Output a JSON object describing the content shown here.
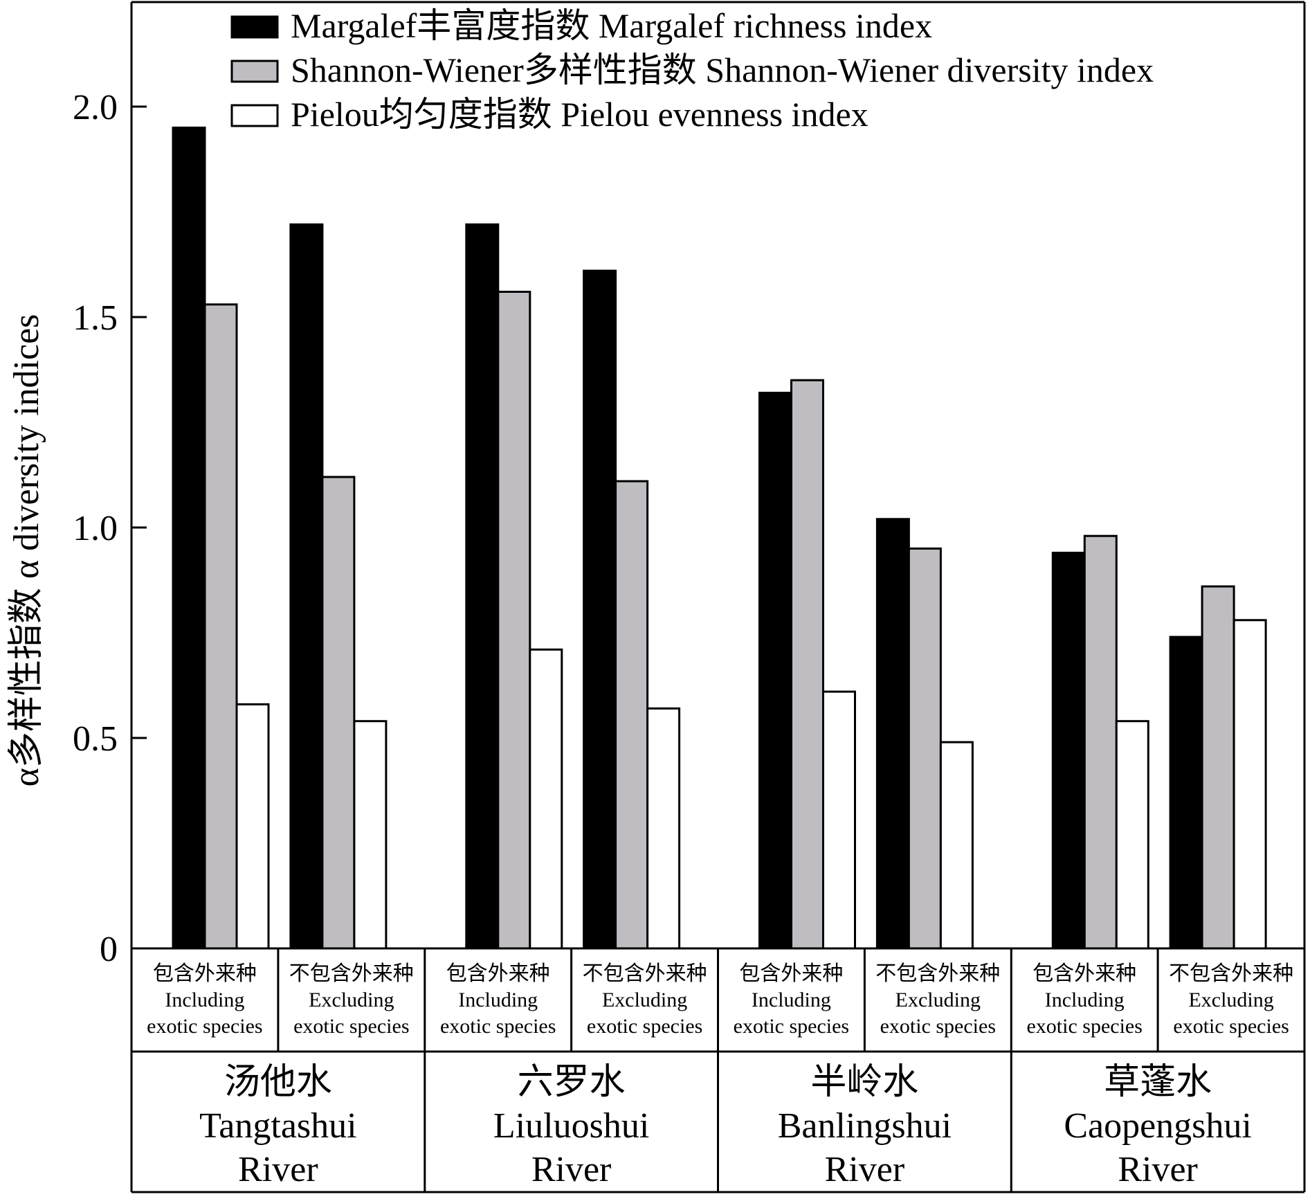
{
  "chart_data": {
    "type": "bar",
    "ylabel": "α多样性指数 α diversity indices",
    "ylim": [
      0,
      2.2
    ],
    "yticks": [
      "0",
      "0.5",
      "1.0",
      "1.5",
      "2.0"
    ],
    "ytick_values": [
      0,
      0.5,
      1.0,
      1.5,
      2.0
    ],
    "legend_placement": "top",
    "groups": [
      {
        "name_cn": "汤他水",
        "name_en1": "Tangtashui",
        "name_en2": "River"
      },
      {
        "name_cn": "六罗水",
        "name_en1": "Liuluoshui",
        "name_en2": "River"
      },
      {
        "name_cn": "半岭水",
        "name_en1": "Banlingshui",
        "name_en2": "River"
      },
      {
        "name_cn": "草蓬水",
        "name_en1": "Caopengshui",
        "name_en2": "River"
      }
    ],
    "subcategory_labels": {
      "including": {
        "cn": "包含外来种",
        "en1": "Including",
        "en2": "exotic species"
      },
      "excluding": {
        "cn": "不包含外来种",
        "en1": "Excluding",
        "en2": "exotic species"
      }
    },
    "categories": [
      "汤他水 包含外来种",
      "汤他水 不包含外来种",
      "六罗水 包含外来种",
      "六罗水 不包含外来种",
      "半岭水 包含外来种",
      "半岭水 不包含外来种",
      "草蓬水 包含外来种",
      "草蓬水 不包含外来种"
    ],
    "series": [
      {
        "name": "Margalef丰富度指数 Margalef richness index",
        "color": "#000000",
        "values": [
          1.95,
          1.72,
          1.72,
          1.61,
          1.32,
          1.02,
          0.94,
          0.74
        ]
      },
      {
        "name": "Shannon-Wiener多样性指数 Shannon-Wiener diversity index",
        "color": "#bfbdc1",
        "values": [
          1.53,
          1.12,
          1.56,
          1.11,
          1.35,
          0.95,
          0.98,
          0.86
        ]
      },
      {
        "name": "Pielou均匀度指数 Pielou evenness index",
        "color": "#ffffff",
        "values": [
          0.58,
          0.54,
          0.71,
          0.57,
          0.61,
          0.49,
          0.54,
          0.78
        ]
      }
    ]
  }
}
